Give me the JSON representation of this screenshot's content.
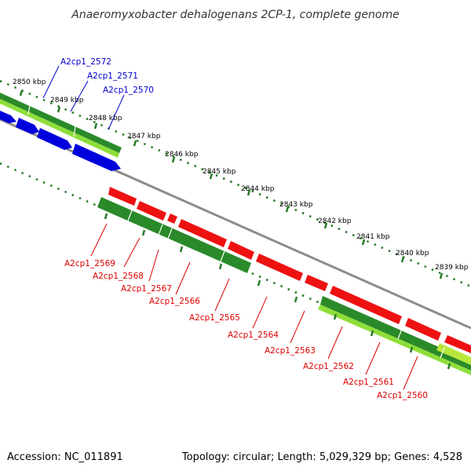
{
  "title": "Anaeromyxobacter dehalogenans 2CP-1, complete genome",
  "accession": "Accession: NC_011891",
  "topology": "Topology: circular; Length: 5,029,329 bp; Genes: 4,528",
  "colors": {
    "forward_label": "#0000cc",
    "reverse_label": "#dd0000",
    "backbone": "#8c8c8c",
    "tick": "#2a7a2a",
    "forward_gene": "#0000dd",
    "reverse_gene": "#ee1111",
    "cds_green": "#2a8a2a",
    "cds_light": "#8ede3a"
  },
  "scale_ticks": [
    {
      "label": "2850 kbp"
    },
    {
      "label": "2849 kbp"
    },
    {
      "label": "2848 kbp"
    },
    {
      "label": "2847 kbp"
    },
    {
      "label": "2846 kbp"
    },
    {
      "label": "2845 kbp"
    },
    {
      "label": "2844 kbp"
    },
    {
      "label": "2843 kbp"
    },
    {
      "label": "2842 kbp"
    },
    {
      "label": "2841 kbp"
    },
    {
      "label": "2840 kbp"
    },
    {
      "label": "2839 kbp"
    }
  ],
  "forward_genes": [
    {
      "label": "A2cp1_2572"
    },
    {
      "label": "A2cp1_2571"
    },
    {
      "label": "A2cp1_2570"
    }
  ],
  "reverse_genes": [
    {
      "label": "A2cp1_2569"
    },
    {
      "label": "A2cp1_2568"
    },
    {
      "label": "A2cp1_2567"
    },
    {
      "label": "A2cp1_2566"
    },
    {
      "label": "A2cp1_2565"
    },
    {
      "label": "A2cp1_2564"
    },
    {
      "label": "A2cp1_2563"
    },
    {
      "label": "A2cp1_2562"
    },
    {
      "label": "A2cp1_2561"
    },
    {
      "label": "A2cp1_2560"
    }
  ]
}
